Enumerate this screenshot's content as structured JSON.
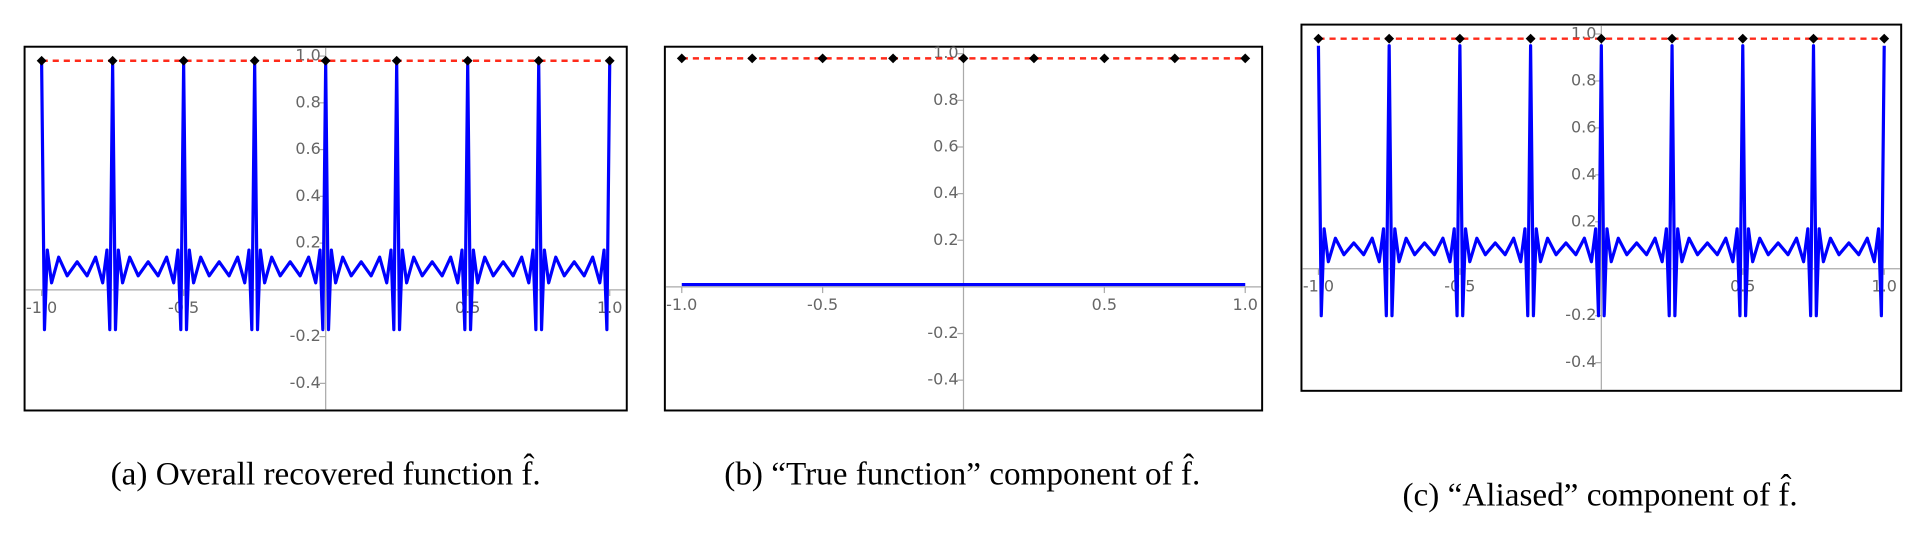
{
  "chart_data": [
    {
      "type": "line",
      "caption": "(a) Overall recovered function f̂.",
      "xlim": [
        -1.06,
        1.06
      ],
      "ylim": [
        -0.516,
        1.04
      ],
      "xticks": [
        {
          "value": -1,
          "label": "-1.0"
        },
        -0.5,
        0.5,
        {
          "value": 1,
          "label": "1.0"
        }
      ],
      "yticks": [
        -0.4,
        -0.2,
        0.2,
        0.4,
        0.6,
        0.8,
        {
          "value": 1,
          "label": "1.0"
        }
      ],
      "series": [
        {
          "color": "#0000ff",
          "marker": "none",
          "x": [
            -1,
            -0.99,
            -0.98,
            -0.965,
            -0.94,
            -0.91,
            -0.875,
            -0.84,
            -0.81,
            -0.785,
            -0.77,
            -0.76,
            -0.75,
            -0.74,
            -0.73,
            -0.715,
            -0.69,
            -0.66,
            -0.625,
            -0.59,
            -0.56,
            -0.535,
            -0.52,
            -0.51,
            -0.5,
            -0.49,
            -0.48,
            -0.465,
            -0.44,
            -0.41,
            -0.375,
            -0.34,
            -0.31,
            -0.285,
            -0.27,
            -0.26,
            -0.25,
            -0.24,
            -0.23,
            -0.215,
            -0.19,
            -0.16,
            -0.125,
            -0.09,
            -0.06,
            -0.035,
            -0.02,
            -0.01,
            0,
            0.01,
            0.02,
            0.035,
            0.06,
            0.09,
            0.125,
            0.16,
            0.19,
            0.215,
            0.23,
            0.24,
            0.25,
            0.26,
            0.27,
            0.285,
            0.31,
            0.34,
            0.375,
            0.41,
            0.44,
            0.465,
            0.48,
            0.49,
            0.5,
            0.51,
            0.52,
            0.535,
            0.56,
            0.59,
            0.625,
            0.66,
            0.69,
            0.715,
            0.73,
            0.74,
            0.75,
            0.76,
            0.77,
            0.785,
            0.81,
            0.84,
            0.875,
            0.91,
            0.94,
            0.965,
            0.98,
            0.99,
            1
          ],
          "values": [
            0.97,
            -0.17,
            0.17,
            0.03,
            0.14,
            0.06,
            0.12,
            0.06,
            0.14,
            0.03,
            0.17,
            -0.17,
            0.97,
            -0.17,
            0.17,
            0.03,
            0.14,
            0.06,
            0.12,
            0.06,
            0.14,
            0.03,
            0.17,
            -0.17,
            0.97,
            -0.17,
            0.17,
            0.03,
            0.14,
            0.06,
            0.12,
            0.06,
            0.14,
            0.03,
            0.17,
            -0.17,
            0.97,
            -0.17,
            0.17,
            0.03,
            0.14,
            0.06,
            0.12,
            0.06,
            0.14,
            0.03,
            0.17,
            -0.17,
            0.97,
            -0.17,
            0.17,
            0.03,
            0.14,
            0.06,
            0.12,
            0.06,
            0.14,
            0.03,
            0.17,
            -0.17,
            0.97,
            -0.17,
            0.17,
            0.03,
            0.14,
            0.06,
            0.12,
            0.06,
            0.14,
            0.03,
            0.17,
            -0.17,
            0.97,
            -0.17,
            0.17,
            0.03,
            0.14,
            0.06,
            0.12,
            0.06,
            0.14,
            0.03,
            0.17,
            -0.17,
            0.97,
            -0.17,
            0.17,
            0.03,
            0.14,
            0.06,
            0.12,
            0.06,
            0.14,
            0.03,
            0.17,
            -0.17,
            0.97
          ]
        },
        {
          "color": "#ff2a1a",
          "marker": "dashed",
          "x": [
            -1,
            1
          ],
          "values": [
            0.98,
            0.98
          ]
        },
        {
          "color": "#000000",
          "marker": "diamond",
          "x": [
            -1,
            -0.75,
            -0.5,
            -0.25,
            0,
            0.25,
            0.5,
            0.75,
            1
          ],
          "values": [
            0.98,
            0.98,
            0.98,
            0.98,
            0.98,
            0.98,
            0.98,
            0.98,
            0.98
          ]
        }
      ]
    },
    {
      "type": "line",
      "caption": "(b) “True function” component of f̂.",
      "xlim": [
        -1.06,
        1.06
      ],
      "ylim": [
        -0.53,
        1.03
      ],
      "xticks": [
        {
          "value": -1,
          "label": "-1.0"
        },
        -0.5,
        0.5,
        {
          "value": 1,
          "label": "1.0"
        }
      ],
      "yticks": [
        -0.4,
        -0.2,
        0.2,
        0.4,
        0.6,
        0.8,
        {
          "value": 1,
          "label": "1.0"
        }
      ],
      "series": [
        {
          "color": "#0000ff",
          "marker": "none",
          "x": [
            -1,
            1
          ],
          "values": [
            0.01,
            0.01
          ]
        },
        {
          "color": "#ff2a1a",
          "marker": "dashed",
          "x": [
            -1,
            1
          ],
          "values": [
            0.98,
            0.98
          ]
        },
        {
          "color": "#000000",
          "marker": "diamond",
          "x": [
            -1,
            -0.75,
            -0.5,
            -0.25,
            0,
            0.25,
            0.5,
            0.75,
            1
          ],
          "values": [
            0.98,
            0.98,
            0.98,
            0.98,
            0.98,
            0.98,
            0.98,
            0.98,
            0.98
          ]
        }
      ]
    },
    {
      "type": "line",
      "caption": "(c) “Aliased” component of f̂.",
      "xlim": [
        -1.06,
        1.06
      ],
      "ylim": [
        -0.52,
        1.04
      ],
      "xticks": [
        {
          "value": -1,
          "label": "-1.0"
        },
        -0.5,
        0.5,
        {
          "value": 1,
          "label": "1.0"
        }
      ],
      "yticks": [
        -0.4,
        -0.2,
        0.2,
        0.4,
        0.6,
        0.8,
        {
          "value": 1,
          "label": "1.0"
        }
      ],
      "series": [
        {
          "color": "#0000ff",
          "marker": "none",
          "x": [
            -1,
            -0.99,
            -0.98,
            -0.965,
            -0.94,
            -0.91,
            -0.875,
            -0.84,
            -0.81,
            -0.785,
            -0.77,
            -0.76,
            -0.75,
            -0.74,
            -0.73,
            -0.715,
            -0.69,
            -0.66,
            -0.625,
            -0.59,
            -0.56,
            -0.535,
            -0.52,
            -0.51,
            -0.5,
            -0.49,
            -0.48,
            -0.465,
            -0.44,
            -0.41,
            -0.375,
            -0.34,
            -0.31,
            -0.285,
            -0.27,
            -0.26,
            -0.25,
            -0.24,
            -0.23,
            -0.215,
            -0.19,
            -0.16,
            -0.125,
            -0.09,
            -0.06,
            -0.035,
            -0.02,
            -0.01,
            0,
            0.01,
            0.02,
            0.035,
            0.06,
            0.09,
            0.125,
            0.16,
            0.19,
            0.215,
            0.23,
            0.24,
            0.25,
            0.26,
            0.27,
            0.285,
            0.31,
            0.34,
            0.375,
            0.41,
            0.44,
            0.465,
            0.48,
            0.49,
            0.5,
            0.51,
            0.52,
            0.535,
            0.56,
            0.59,
            0.625,
            0.66,
            0.69,
            0.715,
            0.73,
            0.74,
            0.75,
            0.76,
            0.77,
            0.785,
            0.81,
            0.84,
            0.875,
            0.91,
            0.94,
            0.965,
            0.98,
            0.99,
            1
          ],
          "values": [
            0.95,
            -0.2,
            0.17,
            0.03,
            0.13,
            0.06,
            0.11,
            0.06,
            0.13,
            0.03,
            0.17,
            -0.2,
            0.95,
            -0.2,
            0.17,
            0.03,
            0.13,
            0.06,
            0.11,
            0.06,
            0.13,
            0.03,
            0.17,
            -0.2,
            0.95,
            -0.2,
            0.17,
            0.03,
            0.13,
            0.06,
            0.11,
            0.06,
            0.13,
            0.03,
            0.17,
            -0.2,
            0.95,
            -0.2,
            0.17,
            0.03,
            0.13,
            0.06,
            0.11,
            0.06,
            0.13,
            0.03,
            0.17,
            -0.2,
            0.95,
            -0.2,
            0.17,
            0.03,
            0.13,
            0.06,
            0.11,
            0.06,
            0.13,
            0.03,
            0.17,
            -0.2,
            0.95,
            -0.2,
            0.17,
            0.03,
            0.13,
            0.06,
            0.11,
            0.06,
            0.13,
            0.03,
            0.17,
            -0.2,
            0.95,
            -0.2,
            0.17,
            0.03,
            0.13,
            0.06,
            0.11,
            0.06,
            0.13,
            0.03,
            0.17,
            -0.2,
            0.95,
            -0.2,
            0.17,
            0.03,
            0.13,
            0.06,
            0.11,
            0.06,
            0.13,
            0.03,
            0.17,
            -0.2,
            0.95
          ]
        },
        {
          "color": "#ff2a1a",
          "marker": "dashed",
          "x": [
            -1,
            1
          ],
          "values": [
            0.98,
            0.98
          ]
        },
        {
          "color": "#000000",
          "marker": "diamond",
          "x": [
            -1,
            -0.75,
            -0.5,
            -0.25,
            0,
            0.25,
            0.5,
            0.75,
            1
          ],
          "values": [
            0.98,
            0.98,
            0.98,
            0.98,
            0.98,
            0.98,
            0.98,
            0.98,
            0.98
          ]
        }
      ]
    }
  ]
}
